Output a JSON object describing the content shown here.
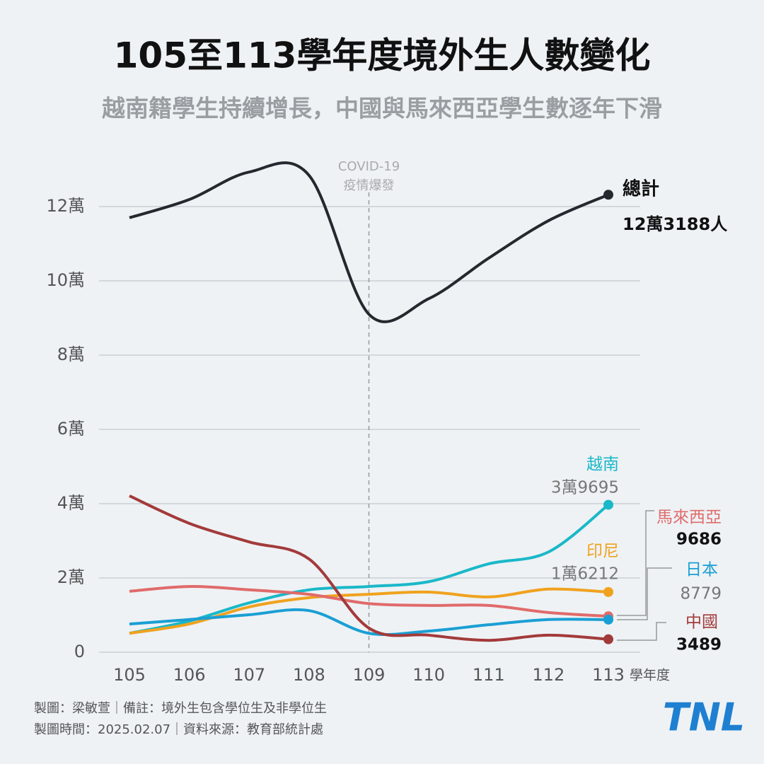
{
  "chart_data": {
    "type": "line",
    "title": "105至113學年度境外生人數變化",
    "subtitle": "越南籍學生持續增長，中國與馬來西亞學生數逐年下滑",
    "x": [
      105,
      106,
      107,
      108,
      109,
      110,
      111,
      112,
      113
    ],
    "xlabel": "學年度",
    "ylim": [
      0,
      130000
    ],
    "yticks": [
      0,
      {
        "value": 20000,
        "label": "2萬"
      },
      {
        "value": 40000,
        "label": "4萬"
      },
      {
        "value": 60000,
        "label": "6萬"
      },
      {
        "value": 80000,
        "label": "8萬"
      },
      {
        "value": 100000,
        "label": "10萬"
      },
      {
        "value": 120000,
        "label": "12萬"
      }
    ],
    "grid": true,
    "annotation": {
      "x": 109,
      "lines": [
        "COVID-19",
        "疫情爆發"
      ]
    },
    "series": [
      {
        "name": "總計",
        "color": "#23292e",
        "values": [
          117000,
          121900,
          129300,
          128400,
          91000,
          95200,
          106100,
          116200,
          123188
        ],
        "value_labels": [
          null,
          null,
          null,
          null,
          null,
          null,
          null,
          null,
          "12萬3188人"
        ],
        "name_color": "#111111",
        "label_color": "#111111"
      },
      {
        "name": "越南",
        "color": "#1ab8c8",
        "values": [
          5100,
          8400,
          13300,
          16800,
          17700,
          19000,
          23800,
          27000,
          39695
        ],
        "value_labels": [
          null,
          null,
          null,
          null,
          null,
          null,
          null,
          null,
          "3萬9695"
        ],
        "name_color": "#1ab8c8",
        "label_color": "#777777"
      },
      {
        "name": "印尼",
        "color": "#f0a21e",
        "values": [
          5100,
          7600,
          12200,
          14700,
          15600,
          16200,
          14900,
          17000,
          16212
        ],
        "value_labels": [
          null,
          null,
          null,
          null,
          null,
          null,
          null,
          null,
          "1萬6212"
        ],
        "name_color": "#f0a21e",
        "label_color": "#777777"
      },
      {
        "name": "馬來西亞",
        "color": "#e06b6b",
        "values": [
          16400,
          17700,
          16800,
          15600,
          13100,
          12600,
          12600,
          10700,
          9686
        ],
        "name_color": "#e06b6b",
        "label_color": "#111111"
      },
      {
        "name": "日本",
        "color": "#1a9fd4",
        "values": [
          7600,
          8800,
          10100,
          11200,
          5100,
          5700,
          7400,
          8800,
          8779
        ],
        "name_color": "#1a9fd4",
        "label_color": "#777777"
      },
      {
        "name": "中國",
        "color": "#a33a3a",
        "values": [
          42100,
          34700,
          29700,
          25100,
          6500,
          4600,
          3200,
          4600,
          3489
        ],
        "name_color": "#a33a3a",
        "label_color": "#111111"
      }
    ]
  },
  "footer": {
    "lines": [
      "製圖：梁敏萱｜備註：境外生包含學位生及非學位生",
      "製圖時間：2025.02.07｜資料來源：教育部統計處"
    ],
    "logo": "TNL"
  }
}
